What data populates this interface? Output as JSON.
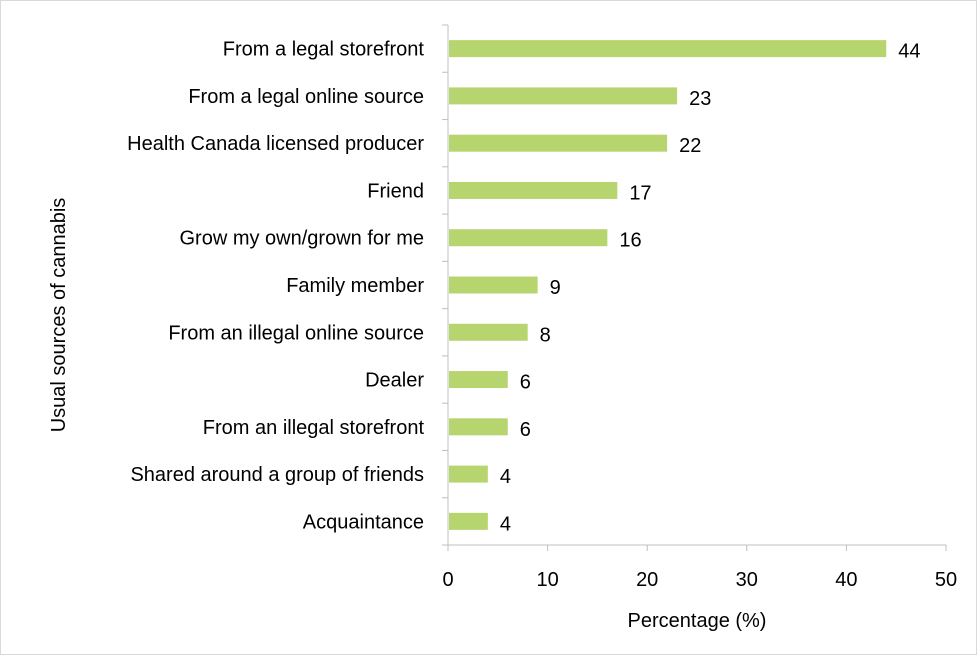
{
  "chart_data": {
    "type": "bar",
    "orientation": "horizontal",
    "title": "",
    "xlabel": "Percentage (%)",
    "ylabel": "Usual sources of cannabis",
    "categories": [
      "From a legal storefront",
      "From a legal online source",
      "Health Canada licensed producer",
      "Friend",
      "Grow my own/grown for me",
      "Family member",
      "From an illegal online source",
      "Dealer",
      "From an illegal storefront",
      "Shared around a group of friends",
      "Acquaintance"
    ],
    "values": [
      44,
      23,
      22,
      17,
      16,
      9,
      8,
      6,
      6,
      4,
      4
    ],
    "data_labels": [
      "44",
      "23",
      "22",
      "17",
      "16",
      "9",
      "8",
      "6",
      "6",
      "4",
      "4"
    ],
    "xlim": [
      0,
      50
    ],
    "xticks": [
      0,
      10,
      20,
      30,
      40,
      50
    ],
    "xtick_labels": [
      "0",
      "10",
      "20",
      "30",
      "40",
      "50"
    ],
    "grid": false,
    "legend": "none",
    "bar_color": "#b7d56f"
  }
}
